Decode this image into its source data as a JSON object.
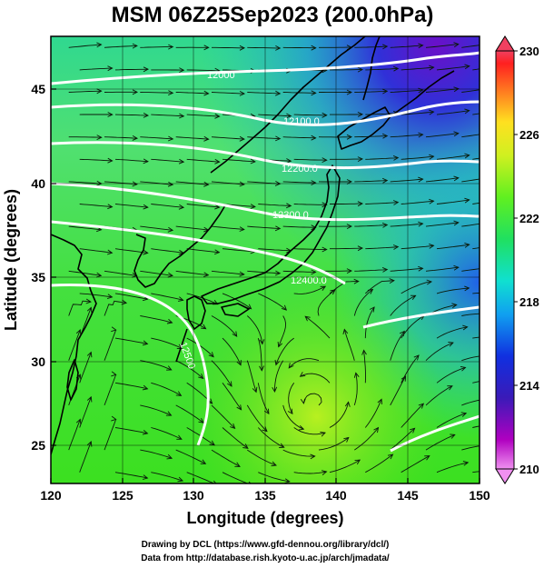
{
  "title": "MSM 06Z25Sep2023 (200.0hPa)",
  "xaxis": {
    "label": "Longitude (degrees)",
    "ticks": [
      "120",
      "125",
      "130",
      "135",
      "140",
      "145",
      "150"
    ],
    "range": [
      120,
      150
    ]
  },
  "yaxis": {
    "label": "Latitude  (degrees)",
    "ticks": [
      "25",
      "30",
      "35",
      "40",
      "45"
    ],
    "range": [
      22.5,
      47.6
    ]
  },
  "colorbar": {
    "ticks": [
      "230",
      "226",
      "222",
      "218",
      "214",
      "210"
    ],
    "range": [
      210,
      230
    ],
    "colors": [
      "#f090f0",
      "#b000c0",
      "#3a1ab8",
      "#1030e0",
      "#10a0f0",
      "#10e0d0",
      "#20e060",
      "#60f020",
      "#d0f020",
      "#ffe020",
      "#ff8020",
      "#ff2020",
      "#f04060"
    ]
  },
  "contour_labels": [
    "12000",
    "12100.0",
    "12200.0",
    "12300.0",
    "12400.0",
    "12500"
  ],
  "credits": {
    "line1": "Drawing by DCL (https://www.gfd-dennou.org/library/dcl/)",
    "line2": "Data from http://database.rish.kyoto-u.ac.jp/arch/jmadata/"
  }
}
